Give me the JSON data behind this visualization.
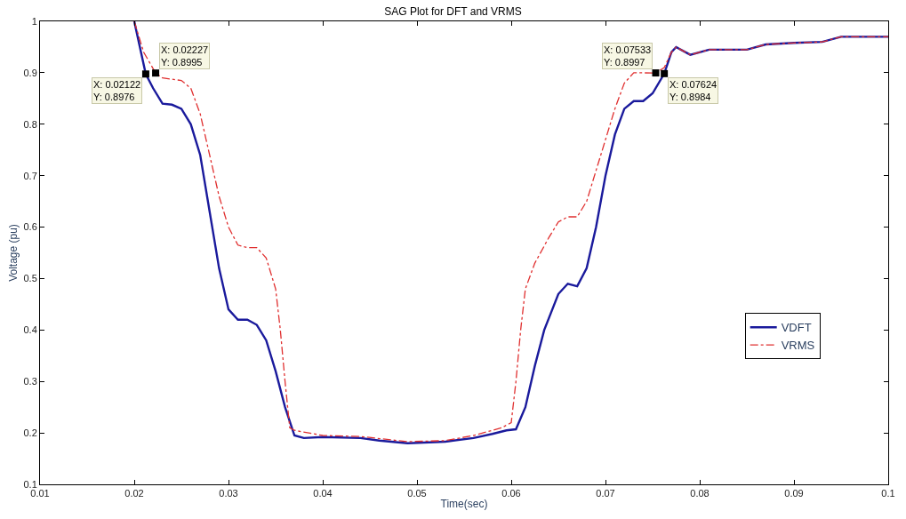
{
  "chart_data": {
    "type": "line",
    "title": "SAG Plot for DFT and VRMS",
    "xlabel": "Time(sec)",
    "ylabel": "Voltage (pu)",
    "xlim": [
      0.01,
      0.1
    ],
    "xticks": [
      0.01,
      0.02,
      0.03,
      0.04,
      0.05,
      0.06,
      0.07,
      0.08,
      0.09,
      0.1
    ],
    "ylim": [
      0.1,
      1
    ],
    "yticks": [
      0.1,
      0.2,
      0.3,
      0.4,
      0.5,
      0.6,
      0.7,
      0.8,
      0.9,
      1
    ],
    "grid": false,
    "legend": "right",
    "marker": "none",
    "series": [
      {
        "name": "VDFT",
        "color": "#1a1a9c",
        "line_style": "solid",
        "x": [
          0.02,
          0.02122,
          0.022,
          0.023,
          0.024,
          0.025,
          0.026,
          0.027,
          0.028,
          0.029,
          0.03,
          0.031,
          0.032,
          0.033,
          0.034,
          0.035,
          0.036,
          0.037,
          0.038,
          0.04,
          0.044,
          0.046,
          0.049,
          0.053,
          0.056,
          0.058,
          0.0595,
          0.0605,
          0.0615,
          0.0625,
          0.0635,
          0.065,
          0.066,
          0.067,
          0.068,
          0.069,
          0.07,
          0.071,
          0.072,
          0.073,
          0.074,
          0.075,
          0.07624,
          0.077,
          0.0775,
          0.079,
          0.081,
          0.085,
          0.087,
          0.09,
          0.093,
          0.095,
          0.1
        ],
        "values": [
          1.0,
          0.8976,
          0.87,
          0.84,
          0.838,
          0.83,
          0.8,
          0.74,
          0.63,
          0.52,
          0.44,
          0.42,
          0.42,
          0.41,
          0.38,
          0.32,
          0.25,
          0.195,
          0.19,
          0.192,
          0.19,
          0.185,
          0.18,
          0.183,
          0.19,
          0.198,
          0.205,
          0.207,
          0.25,
          0.33,
          0.4,
          0.47,
          0.49,
          0.485,
          0.52,
          0.6,
          0.7,
          0.78,
          0.83,
          0.845,
          0.845,
          0.86,
          0.8984,
          0.94,
          0.95,
          0.935,
          0.945,
          0.945,
          0.955,
          0.958,
          0.96,
          0.97,
          0.97
        ]
      },
      {
        "name": "VRMS",
        "color": "#e03030",
        "line_style": "dashdot",
        "x": [
          0.02,
          0.021,
          0.02227,
          0.023,
          0.025,
          0.026,
          0.027,
          0.028,
          0.029,
          0.03,
          0.031,
          0.032,
          0.033,
          0.034,
          0.035,
          0.0355,
          0.036,
          0.0365,
          0.037,
          0.04,
          0.044,
          0.049,
          0.053,
          0.056,
          0.059,
          0.06,
          0.0605,
          0.061,
          0.0615,
          0.0625,
          0.064,
          0.065,
          0.066,
          0.067,
          0.068,
          0.069,
          0.07,
          0.071,
          0.072,
          0.073,
          0.07533,
          0.07624,
          0.077,
          0.0775,
          0.079,
          0.081,
          0.085,
          0.087,
          0.09,
          0.093,
          0.095,
          0.1
        ],
        "values": [
          1.0,
          0.94,
          0.8995,
          0.89,
          0.885,
          0.87,
          0.82,
          0.74,
          0.66,
          0.6,
          0.565,
          0.56,
          0.56,
          0.54,
          0.48,
          0.4,
          0.3,
          0.21,
          0.205,
          0.195,
          0.193,
          0.183,
          0.185,
          0.195,
          0.21,
          0.22,
          0.3,
          0.4,
          0.48,
          0.53,
          0.58,
          0.61,
          0.62,
          0.62,
          0.65,
          0.71,
          0.77,
          0.83,
          0.88,
          0.9,
          0.8997,
          0.91,
          0.94,
          0.95,
          0.935,
          0.945,
          0.945,
          0.955,
          0.958,
          0.96,
          0.97,
          0.97
        ]
      }
    ],
    "annotations": [
      {
        "text": "X: 0.02122\nY: 0.8976",
        "x": 0.02122,
        "y": 0.8976
      },
      {
        "text": "X: 0.02227\nY: 0.8995",
        "x": 0.02227,
        "y": 0.8995
      },
      {
        "text": "X: 0.07533\nY: 0.8997",
        "x": 0.07533,
        "y": 0.8997
      },
      {
        "text": "X: 0.07624\nY: 0.8984",
        "x": 0.07624,
        "y": 0.8984
      }
    ]
  }
}
